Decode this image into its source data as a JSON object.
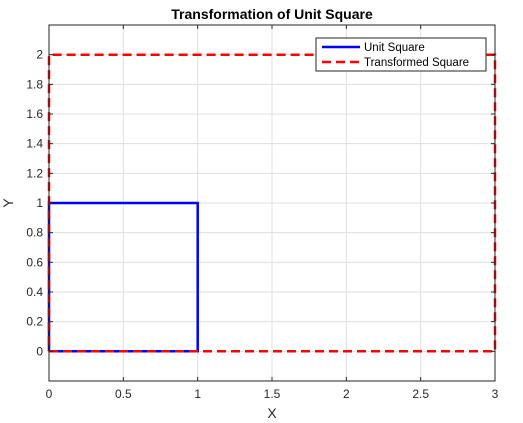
{
  "chart_data": {
    "type": "line",
    "title": "Transformation of Unit Square",
    "xlabel": "X",
    "ylabel": "Y",
    "xlim": [
      0,
      3
    ],
    "ylim": [
      -0.2,
      2.2
    ],
    "xticks": [
      0,
      0.5,
      1,
      1.5,
      2,
      2.5,
      3
    ],
    "xtick_labels": [
      "0",
      "0.5",
      "1",
      "1.5",
      "2",
      "2.5",
      "3"
    ],
    "yticks": [
      0,
      0.2,
      0.4,
      0.6,
      0.8,
      1,
      1.2,
      1.4,
      1.6,
      1.8,
      2
    ],
    "ytick_labels": [
      "0",
      "0.2",
      "0.4",
      "0.6",
      "0.8",
      "1",
      "1.2",
      "1.4",
      "1.6",
      "1.8",
      "2"
    ],
    "grid": true,
    "legend_position": "top-right",
    "series": [
      {
        "name": "Unit Square",
        "color": "#0000ff",
        "style": "solid",
        "x": [
          0,
          1,
          1,
          0,
          0
        ],
        "y": [
          0,
          0,
          1,
          1,
          0
        ]
      },
      {
        "name": "Transformed Square",
        "color": "#ff0000",
        "style": "dashed",
        "x": [
          0,
          3,
          3,
          0,
          0
        ],
        "y": [
          0,
          0,
          2,
          2,
          0
        ]
      }
    ]
  }
}
